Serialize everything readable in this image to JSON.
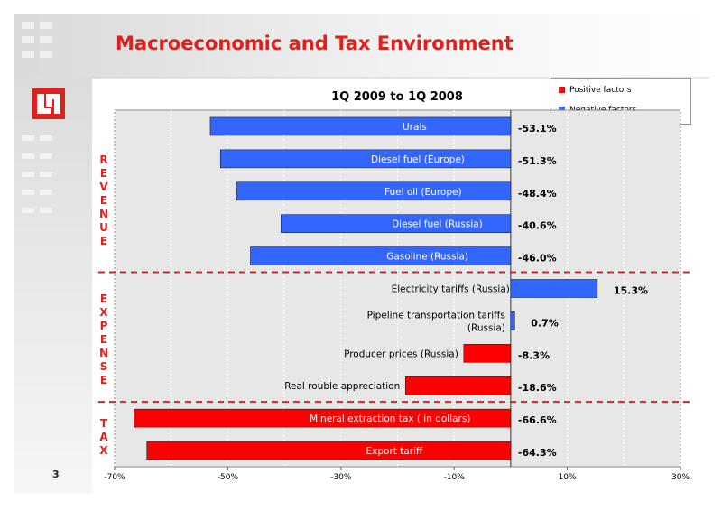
{
  "slide": {
    "title": "Macroeconomic and Tax Environment",
    "page_number": "3",
    "section_labels": [
      {
        "name": "revenue-label",
        "letters": [
          "R",
          "E",
          "V",
          "E",
          "N",
          "U",
          "E"
        ]
      },
      {
        "name": "expense-label",
        "letters": [
          "E",
          "X",
          "P",
          "E",
          "N",
          "S",
          "E"
        ]
      },
      {
        "name": "tax-label",
        "letters": [
          "T",
          "A",
          "X"
        ]
      }
    ]
  },
  "legend": {
    "positive": "Positive factors",
    "negative": "Negative factors"
  },
  "colors": {
    "positive": "#ff0000",
    "negative": "#3366ff",
    "title_red": "#e0201c",
    "divider": "#e0201c",
    "plot_bg": "#e7e7e7"
  },
  "chart_data": {
    "type": "bar",
    "orientation": "horizontal",
    "title": "1Q 2009 to 1Q 2008",
    "xlabel": "",
    "ylabel": "",
    "xlim": [
      -70,
      30
    ],
    "xticks": [
      -70,
      -50,
      -30,
      -10,
      10,
      30
    ],
    "xtick_labels": [
      "-70%",
      "-50%",
      "-30%",
      "-10%",
      "10%",
      "30%"
    ],
    "grid": true,
    "legend_position": "top-right",
    "bars": [
      {
        "label": "Urals",
        "value": -53.1,
        "value_label": "-53.1%",
        "factor": "negative",
        "label_inside": true
      },
      {
        "label": "Diesel fuel (Europe)",
        "value": -51.3,
        "value_label": "-51.3%",
        "factor": "negative",
        "label_inside": true
      },
      {
        "label": "Fuel oil (Europe)",
        "value": -48.4,
        "value_label": "-48.4%",
        "factor": "negative",
        "label_inside": true
      },
      {
        "label": "Diesel fuel (Russia)",
        "value": -40.6,
        "value_label": "-40.6%",
        "factor": "negative",
        "label_inside": true
      },
      {
        "label": "Gasoline (Russia)",
        "value": -46.0,
        "value_label": "-46.0%",
        "factor": "negative",
        "label_inside": true
      },
      {
        "label": "Electricity tariffs (Russia)",
        "value": 15.3,
        "value_label": "15.3%",
        "factor": "negative",
        "label_inside": false
      },
      {
        "label": "Pipeline transportation tariffs (Russia)",
        "label_lines": [
          "Pipeline transportation tariffs",
          "(Russia)"
        ],
        "value": 0.7,
        "value_label": "0.7%",
        "factor": "negative",
        "label_inside": false
      },
      {
        "label": "Producer prices (Russia)",
        "value": -8.3,
        "value_label": "-8.3%",
        "factor": "positive",
        "label_inside": false
      },
      {
        "label": "Real rouble appreciation",
        "value": -18.6,
        "value_label": "-18.6%",
        "factor": "positive",
        "label_inside": false
      },
      {
        "label": "Mineral extraction tax ( in dollars)",
        "value": -66.6,
        "value_label": "-66.6%",
        "factor": "positive",
        "label_inside": true
      },
      {
        "label": "Export tariff",
        "value": -64.3,
        "value_label": "-64.3%",
        "factor": "positive",
        "label_inside": true
      }
    ],
    "section_dividers_after": [
      4,
      8
    ]
  }
}
